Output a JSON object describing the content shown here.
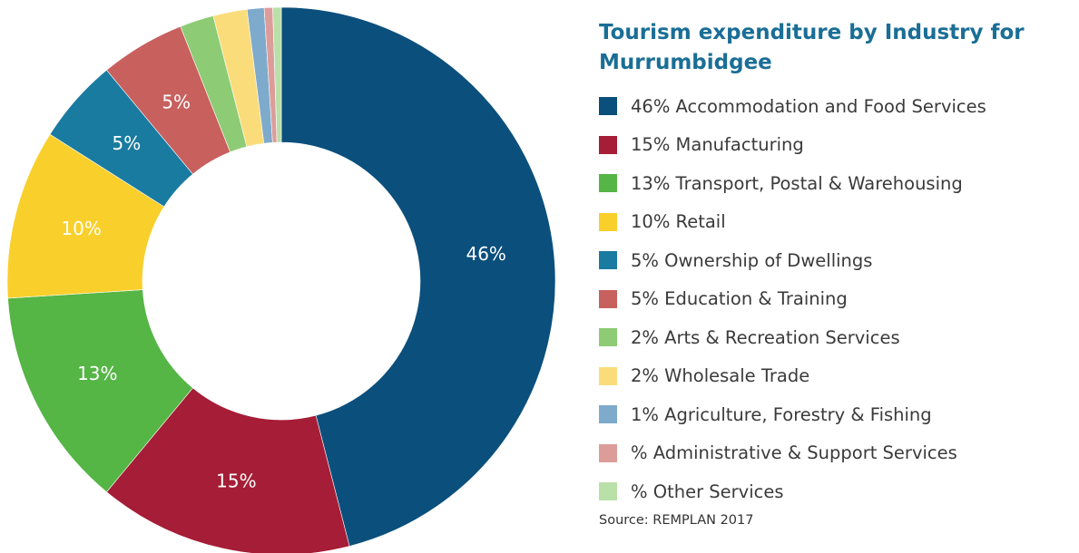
{
  "chart_data": {
    "type": "donut",
    "title": "Tourism expenditure by Industry for Murrumbidgee",
    "categories": [
      "46% Accommodation and Food Services",
      "15% Manufacturing",
      "13% Transport, Postal & Warehousing",
      "10% Retail",
      "5% Ownership of Dwellings",
      "5% Education & Training",
      "2% Arts & Recreation Services",
      "2% Wholesale Trade",
      "1% Agriculture, Forestry & Fishing",
      "% Administrative & Support Services",
      "% Other Services"
    ],
    "values": [
      46,
      15,
      13,
      10,
      5,
      5,
      2,
      2,
      1,
      0.5,
      0.5
    ],
    "value_labels": [
      "46%",
      "15%",
      "13%",
      "10%",
      "5%",
      "5%",
      null,
      null,
      null,
      null,
      null
    ],
    "colors": [
      "#0b4f7c",
      "#a51d36",
      "#55b545",
      "#f9cf2b",
      "#1a7ba0",
      "#c8605e",
      "#8dcb74",
      "#fbdc7a",
      "#7eaacb",
      "#dc9d9a",
      "#b9e0a8"
    ],
    "source": "Source: REMPLAN 2017"
  }
}
